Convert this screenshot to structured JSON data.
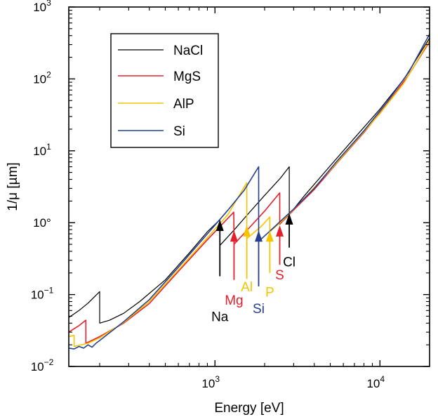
{
  "chart_data": {
    "type": "line",
    "title": "",
    "xlabel": "Energy [eV]",
    "ylabel": "1/μ [µm]",
    "x_scale": "log",
    "y_scale": "log",
    "xlim": [
      130,
      20000
    ],
    "ylim": [
      0.01,
      1000
    ],
    "grid": false,
    "legend_position": "top-left",
    "x_ticks": [
      {
        "value": 1000,
        "base": "10",
        "exp": "3"
      },
      {
        "value": 10000,
        "base": "10",
        "exp": "4"
      }
    ],
    "y_ticks": [
      {
        "value": 0.01,
        "base": "10",
        "exp": "−2"
      },
      {
        "value": 0.1,
        "base": "10",
        "exp": "−1"
      },
      {
        "value": 1,
        "label": "10°"
      },
      {
        "value": 10,
        "base": "10",
        "exp": "1"
      },
      {
        "value": 100,
        "base": "10",
        "exp": "2"
      },
      {
        "value": 1000,
        "base": "10",
        "exp": "3"
      }
    ],
    "series": [
      {
        "name": "NaCl",
        "color": "#000000",
        "width": 1.2,
        "points": [
          [
            130,
            0.048
          ],
          [
            150,
            0.06
          ],
          [
            170,
            0.076
          ],
          [
            200,
            0.11
          ],
          [
            200,
            0.04
          ],
          [
            230,
            0.044
          ],
          [
            280,
            0.055
          ],
          [
            350,
            0.08
          ],
          [
            500,
            0.16
          ],
          [
            700,
            0.38
          ],
          [
            900,
            0.75
          ],
          [
            1070,
            1.1
          ],
          [
            1070,
            0.48
          ],
          [
            1300,
            0.78
          ],
          [
            1600,
            1.35
          ],
          [
            2000,
            2.4
          ],
          [
            2500,
            4.2
          ],
          [
            2820,
            6.0
          ],
          [
            2820,
            1.3
          ],
          [
            3500,
            2.4
          ],
          [
            5000,
            6.2
          ],
          [
            7000,
            15
          ],
          [
            10000,
            38
          ],
          [
            14000,
            100
          ],
          [
            20000,
            370
          ]
        ]
      },
      {
        "name": "MgS",
        "color": "#e3202b",
        "width": 1.6,
        "points": [
          [
            130,
            0.03
          ],
          [
            150,
            0.037
          ],
          [
            165,
            0.044
          ],
          [
            165,
            0.021
          ],
          [
            200,
            0.026
          ],
          [
            280,
            0.04
          ],
          [
            400,
            0.075
          ],
          [
            600,
            0.21
          ],
          [
            900,
            0.58
          ],
          [
            1300,
            1.4
          ],
          [
            1305,
            0.5
          ],
          [
            1600,
            0.83
          ],
          [
            2000,
            1.45
          ],
          [
            2470,
            2.6
          ],
          [
            2470,
            0.95
          ],
          [
            3000,
            1.5
          ],
          [
            4000,
            2.9
          ],
          [
            5500,
            6.8
          ],
          [
            8000,
            18
          ],
          [
            11000,
            44
          ],
          [
            15000,
            115
          ],
          [
            20000,
            330
          ]
        ]
      },
      {
        "name": "AlP",
        "color": "#f5c400",
        "width": 1.6,
        "points": [
          [
            130,
            0.026
          ],
          [
            140,
            0.027
          ],
          [
            140,
            0.019
          ],
          [
            170,
            0.021
          ],
          [
            200,
            0.025
          ],
          [
            280,
            0.041
          ],
          [
            400,
            0.08
          ],
          [
            600,
            0.22
          ],
          [
            900,
            0.62
          ],
          [
            1200,
            1.3
          ],
          [
            1560,
            3.6
          ],
          [
            1560,
            0.6
          ],
          [
            1900,
            0.88
          ],
          [
            2150,
            1.2
          ],
          [
            2150,
            0.75
          ],
          [
            2600,
            1.1
          ],
          [
            3500,
            2.2
          ],
          [
            5000,
            5.4
          ],
          [
            7000,
            13
          ],
          [
            10000,
            33
          ],
          [
            14000,
            88
          ],
          [
            20000,
            345
          ]
        ]
      },
      {
        "name": "Si",
        "color": "#24408f",
        "width": 1.6,
        "points": [
          [
            130,
            0.018
          ],
          [
            140,
            0.0175
          ],
          [
            150,
            0.019
          ],
          [
            160,
            0.018
          ],
          [
            170,
            0.02
          ],
          [
            180,
            0.0185
          ],
          [
            190,
            0.021
          ],
          [
            200,
            0.023
          ],
          [
            280,
            0.042
          ],
          [
            400,
            0.085
          ],
          [
            600,
            0.24
          ],
          [
            900,
            0.7
          ],
          [
            1200,
            1.5
          ],
          [
            1500,
            2.8
          ],
          [
            1840,
            6.0
          ],
          [
            1840,
            0.55
          ],
          [
            2200,
            0.8
          ],
          [
            3000,
            1.55
          ],
          [
            4000,
            3.0
          ],
          [
            5500,
            7.2
          ],
          [
            8000,
            19
          ],
          [
            11000,
            47
          ],
          [
            15000,
            125
          ],
          [
            20000,
            420
          ]
        ]
      }
    ],
    "edge_labels": [
      {
        "label": "Na",
        "energy": 1071,
        "arrow_from": 0.18,
        "arrow_to": 1.1,
        "label_value": 0.05,
        "color": "#000000"
      },
      {
        "label": "Mg",
        "energy": 1305,
        "arrow_from": 0.16,
        "arrow_to": 0.78,
        "label_value": 0.085,
        "color": "#e3202b"
      },
      {
        "label": "Al",
        "energy": 1560,
        "arrow_from": 0.165,
        "arrow_to": 0.92,
        "label_value": 0.13,
        "color": "#f5c400"
      },
      {
        "label": "Si",
        "energy": 1840,
        "arrow_from": 0.13,
        "arrow_to": 0.78,
        "label_value": 0.065,
        "color": "#24408f"
      },
      {
        "label": "P",
        "energy": 2150,
        "arrow_from": 0.2,
        "arrow_to": 0.78,
        "label_value": 0.11,
        "color": "#f5c400"
      },
      {
        "label": "S",
        "energy": 2470,
        "arrow_from": 0.26,
        "arrow_to": 0.92,
        "label_value": 0.19,
        "color": "#e3202b"
      },
      {
        "label": "Cl",
        "energy": 2820,
        "arrow_from": 0.45,
        "arrow_to": 1.35,
        "label_value": 0.29,
        "color": "#000000"
      }
    ]
  }
}
